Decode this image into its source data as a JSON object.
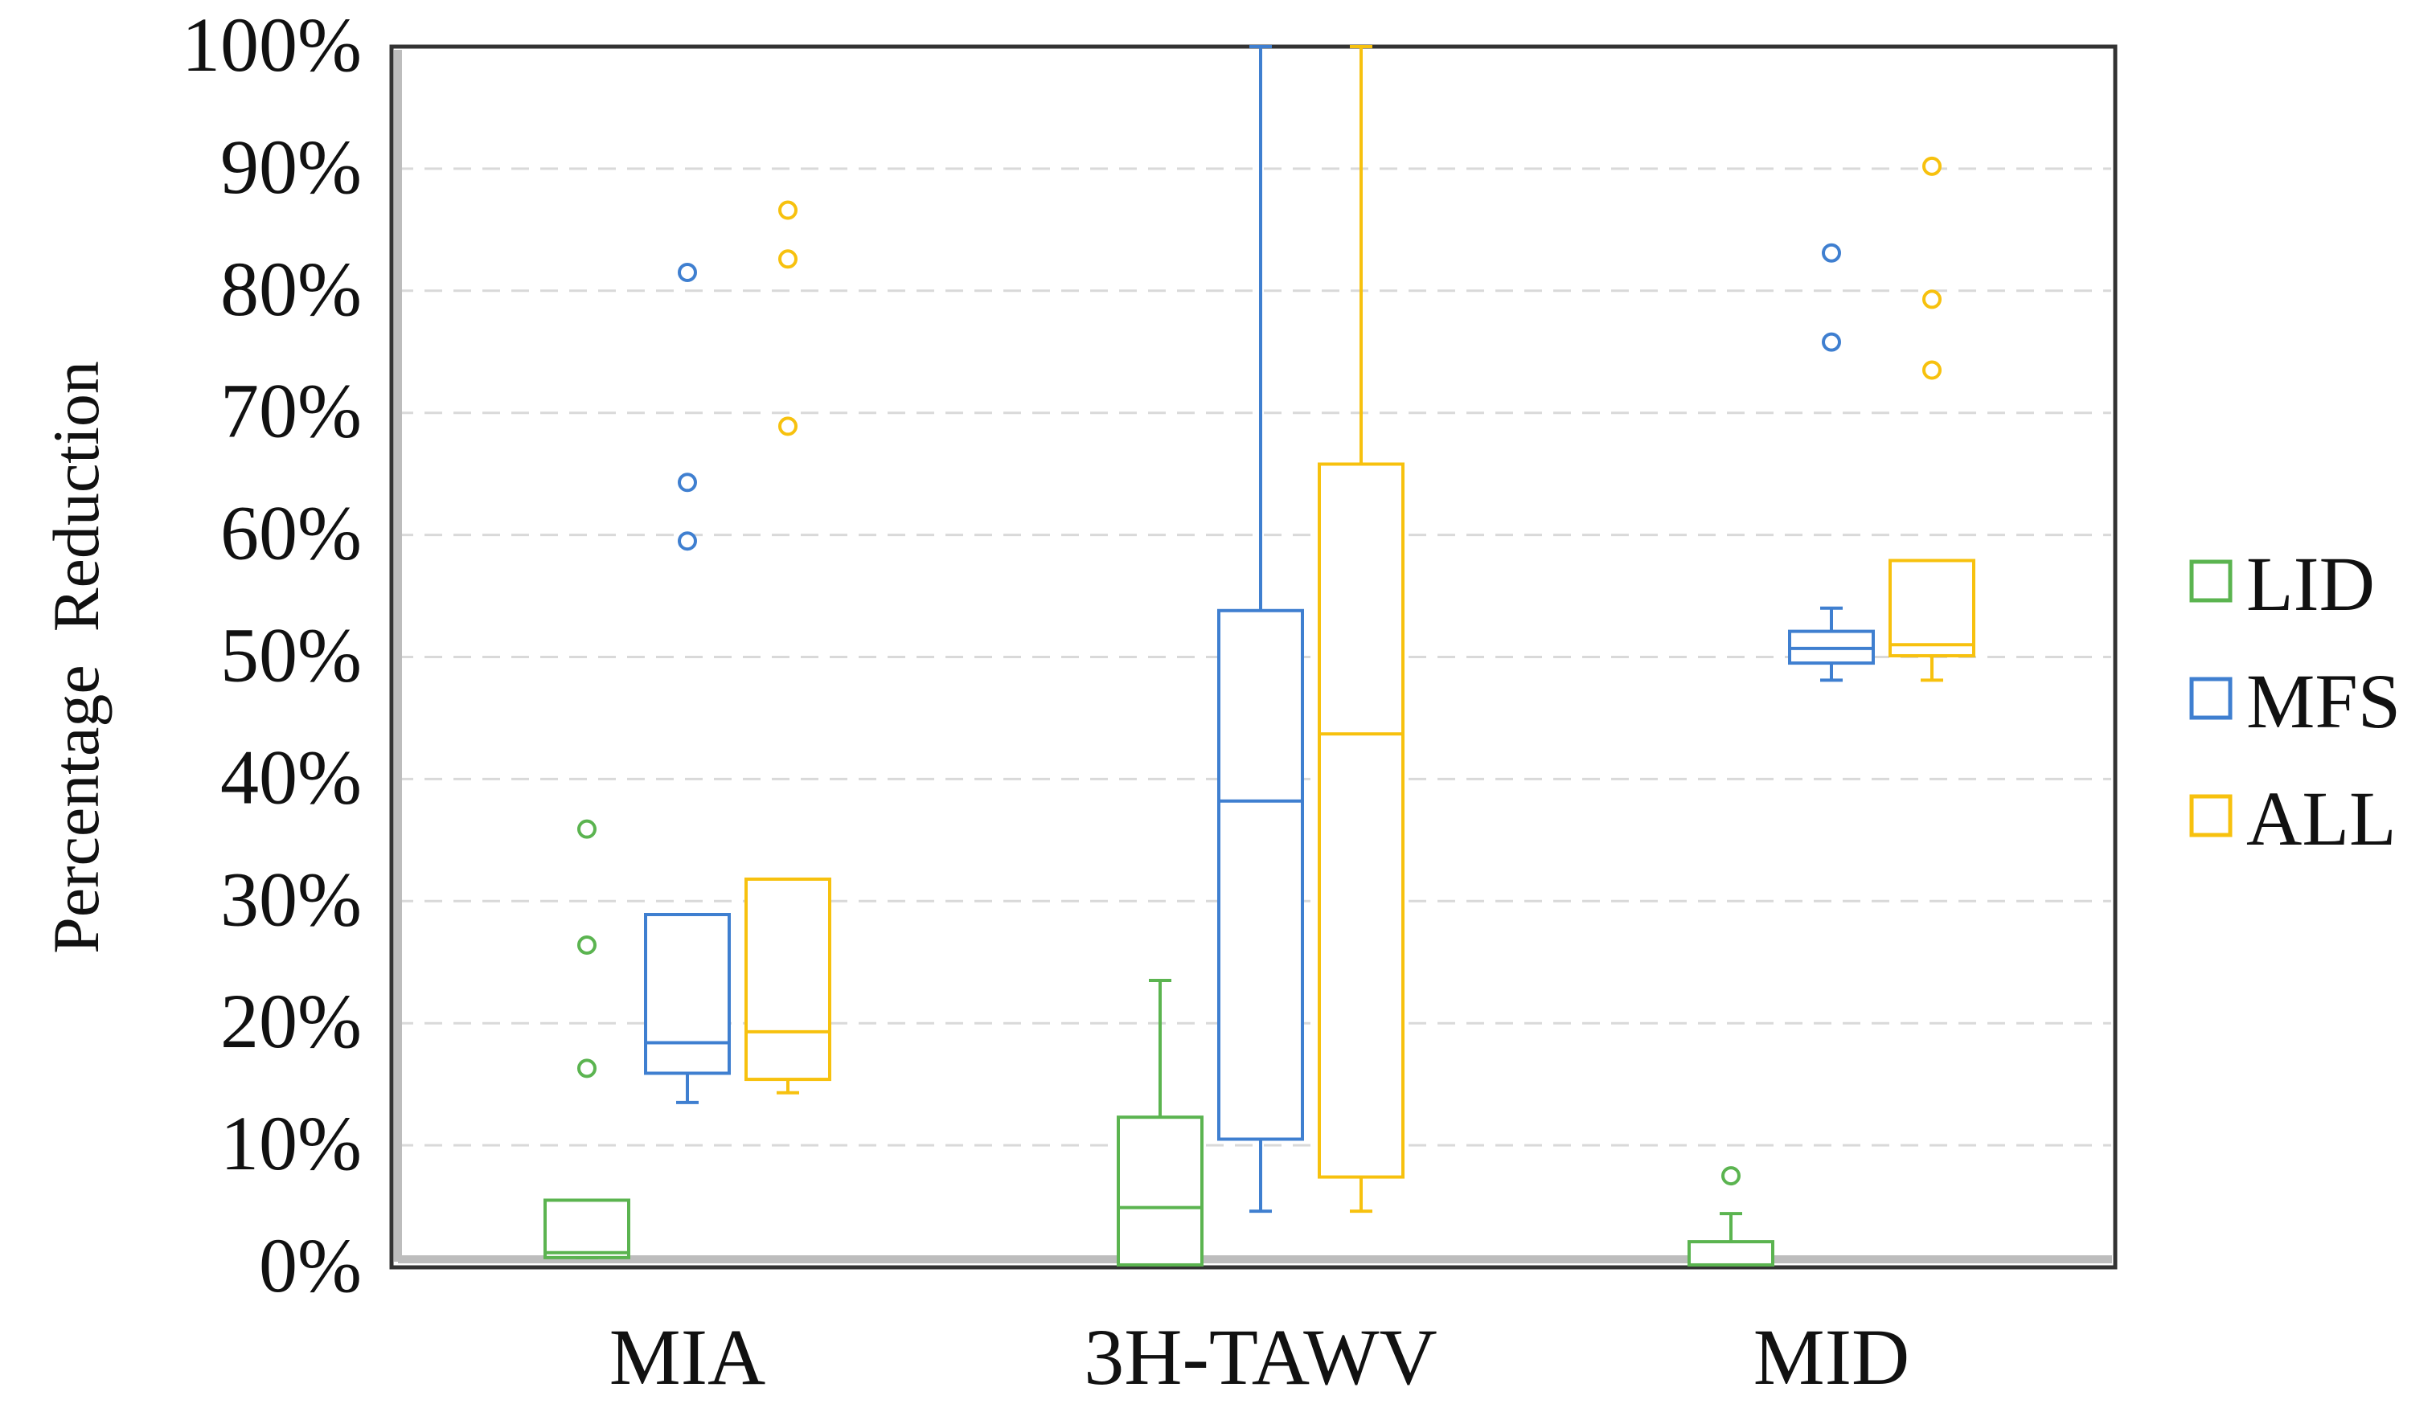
{
  "chart_data": {
    "type": "boxplot",
    "title": "",
    "xlabel": "",
    "ylabel": "Percentage  Reduction",
    "ylim": [
      0,
      100
    ],
    "yticks": [
      0,
      10,
      20,
      30,
      40,
      50,
      60,
      70,
      80,
      90,
      100
    ],
    "ytick_labels": [
      "0%",
      "10%",
      "20%",
      "30%",
      "40%",
      "50%",
      "60%",
      "70%",
      "80%",
      "90%",
      "100%"
    ],
    "grid": "horizontal-dashed",
    "legend_position": "right",
    "categories": [
      "MIA",
      "3H-TAWV",
      "MID"
    ],
    "series": [
      {
        "name": "LID",
        "color": "#5BB450",
        "boxes": [
          {
            "category": "MIA",
            "whisker_low": 0.8,
            "q1": 0.8,
            "median": 1.2,
            "q3": 5.5,
            "whisker_high": 5.5,
            "outliers": [
              16.3,
              26.4,
              35.9
            ]
          },
          {
            "category": "3H-TAWV",
            "whisker_low": 0.2,
            "q1": 0.2,
            "median": 4.9,
            "q3": 12.3,
            "whisker_high": 23.5,
            "outliers": []
          },
          {
            "category": "MID",
            "whisker_low": 0.2,
            "q1": 0.2,
            "median": 0.2,
            "q3": 2.1,
            "whisker_high": 4.4,
            "outliers": [
              7.5
            ]
          }
        ]
      },
      {
        "name": "MFS",
        "color": "#3F7FD0",
        "boxes": [
          {
            "category": "MIA",
            "whisker_low": 13.5,
            "q1": 15.9,
            "median": 18.4,
            "q3": 28.9,
            "whisker_high": 28.9,
            "outliers": [
              59.5,
              64.3,
              81.5
            ]
          },
          {
            "category": "3H-TAWV",
            "whisker_low": 4.6,
            "q1": 10.5,
            "median": 38.2,
            "q3": 53.8,
            "whisker_high": 100,
            "outliers": []
          },
          {
            "category": "MID",
            "whisker_low": 48.1,
            "q1": 49.5,
            "median": 50.7,
            "q3": 52.1,
            "whisker_high": 54.0,
            "outliers": [
              75.8,
              83.1
            ]
          }
        ]
      },
      {
        "name": "ALL",
        "color": "#F7C10E",
        "boxes": [
          {
            "category": "MIA",
            "whisker_low": 14.3,
            "q1": 15.4,
            "median": 19.3,
            "q3": 31.8,
            "whisker_high": 31.8,
            "outliers": [
              68.9,
              82.6,
              86.6
            ]
          },
          {
            "category": "3H-TAWV",
            "whisker_low": 4.6,
            "q1": 7.4,
            "median": 43.7,
            "q3": 65.8,
            "whisker_high": 100,
            "outliers": []
          },
          {
            "category": "MID",
            "whisker_low": 48.1,
            "q1": 50.1,
            "median": 51.0,
            "q3": 57.9,
            "whisker_high": 57.9,
            "outliers": [
              73.5,
              79.3,
              90.2
            ]
          }
        ]
      }
    ]
  }
}
